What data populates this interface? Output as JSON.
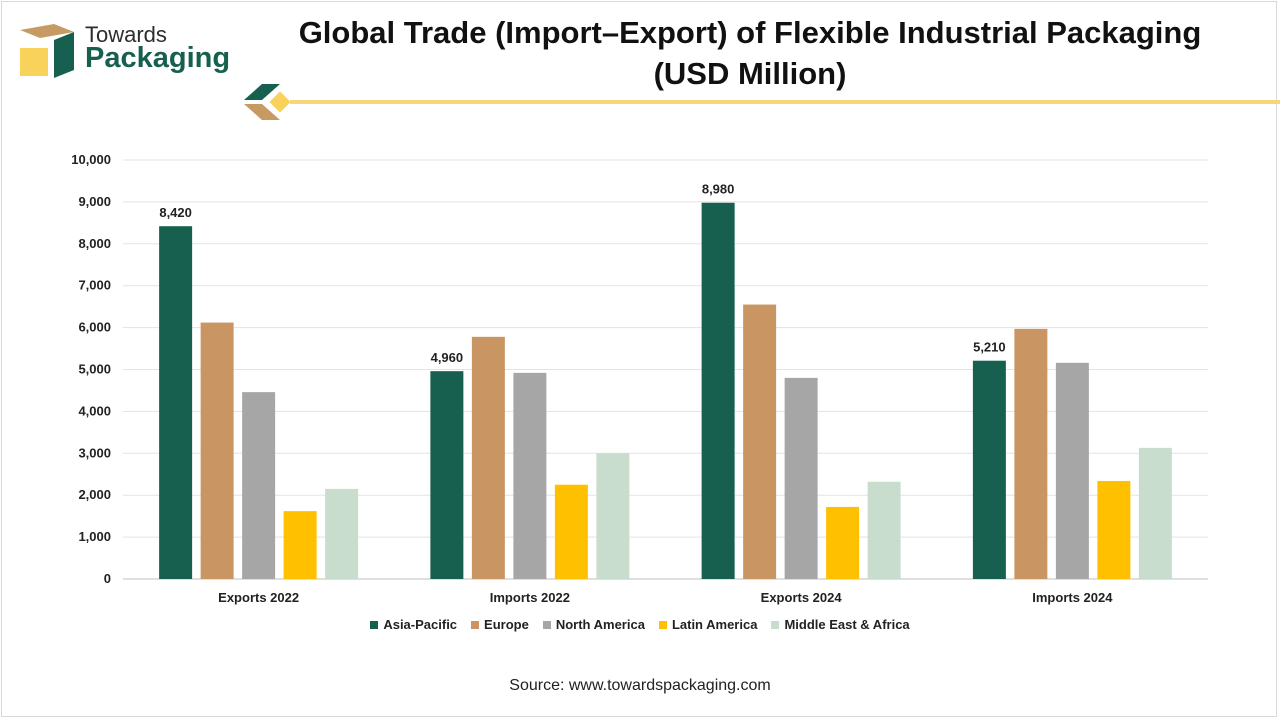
{
  "brand": {
    "line1": "Towards",
    "line2": "Packaging",
    "colors": {
      "green": "#17604f",
      "tan": "#c79a64",
      "yellow": "#f8d25a"
    }
  },
  "header": {
    "title_line1": "Global Trade (Import–Export) of Flexible Industrial Packaging",
    "title_line2": "(USD Million)"
  },
  "source": "Source: www.towardspackaging.com",
  "chart_data": {
    "type": "bar",
    "title": "Global Trade (Import–Export) of Flexible Industrial Packaging (USD Million)",
    "categories": [
      "Exports 2022",
      "Imports 2022",
      "Exports 2024",
      "Imports 2024"
    ],
    "series": [
      {
        "name": "Asia-Pacific",
        "color": "#17604f",
        "values": [
          8420,
          4960,
          8980,
          5210
        ]
      },
      {
        "name": "Europe",
        "color": "#c99663",
        "values": [
          6120,
          5780,
          6550,
          5970
        ]
      },
      {
        "name": "North America",
        "color": "#a6a6a6",
        "values": [
          4460,
          4920,
          4800,
          5160
        ]
      },
      {
        "name": "Latin America",
        "color": "#ffc000",
        "values": [
          1620,
          2250,
          1720,
          2340
        ]
      },
      {
        "name": "Middle East & Africa",
        "color": "#c9ddcf",
        "values": [
          2150,
          3000,
          2320,
          3130
        ]
      }
    ],
    "data_labels": [
      {
        "category": "Exports 2022",
        "series": "Asia-Pacific",
        "text": "8,420"
      },
      {
        "category": "Imports 2022",
        "series": "Asia-Pacific",
        "text": "4,960"
      },
      {
        "category": "Exports 2024",
        "series": "Asia-Pacific",
        "text": "8,980"
      },
      {
        "category": "Imports 2024",
        "series": "Asia-Pacific",
        "text": "5,210"
      }
    ],
    "y_ticks": [
      "0",
      "1,000",
      "2,000",
      "3,000",
      "4,000",
      "5,000",
      "6,000",
      "7,000",
      "8,000",
      "9,000",
      "10,000"
    ],
    "ylim": [
      0,
      10000
    ],
    "ytick_step": 1000,
    "xlabel": "",
    "ylabel": "",
    "grid": true,
    "legend_position": "bottom"
  }
}
